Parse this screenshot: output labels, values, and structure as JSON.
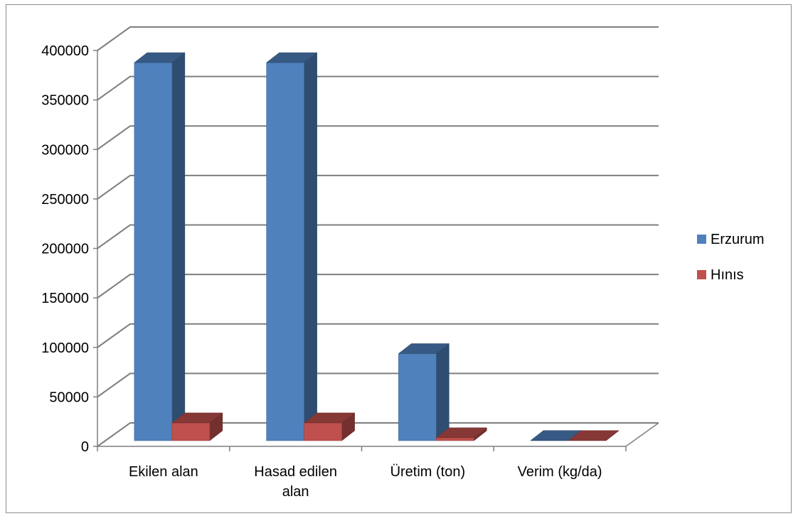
{
  "chart_data": {
    "type": "bar",
    "title": "",
    "xlabel": "",
    "ylabel": "",
    "ylim": [
      0,
      400000
    ],
    "y_tick_labels": [
      "0",
      "50000",
      "100000",
      "150000",
      "200000",
      "250000",
      "300000",
      "350000",
      "400000"
    ],
    "categories": [
      "Ekilen alan",
      "Hasad edilen alan",
      "Üretim (ton)",
      "Verim (kg/da)"
    ],
    "series": [
      {
        "name": "Erzurum",
        "color": "#4f81bd",
        "values": [
          382000,
          382000,
          88000,
          230
        ]
      },
      {
        "name": "Hınıs",
        "color": "#c0504d",
        "values": [
          18000,
          18000,
          3000,
          210
        ]
      }
    ],
    "grid": true,
    "legend": "right",
    "style": "3d-clustered-column"
  }
}
